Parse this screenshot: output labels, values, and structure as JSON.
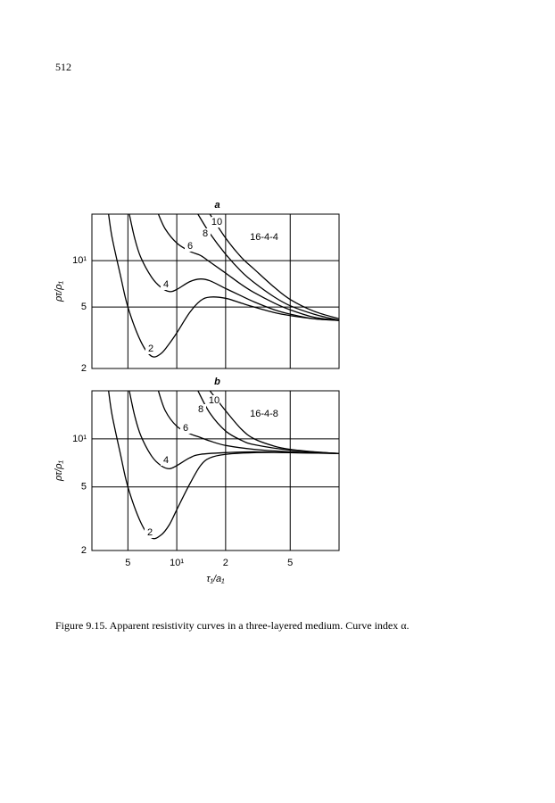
{
  "page_number": "512",
  "figure_caption": "Figure 9.15. Apparent resistivity curves in a three-layered medium. Curve index α.",
  "chart_data": [
    {
      "type": "line",
      "title": "a",
      "annotation": "16-4-4",
      "y_label": "ρτ/ρ₁",
      "log_x": true,
      "log_y": true,
      "grid": true,
      "xlim": [
        3,
        100
      ],
      "ylim": [
        2,
        20
      ],
      "xticks": [
        5,
        10,
        20,
        50
      ],
      "yticks": [
        2,
        5,
        {
          "value": 10,
          "label": "10¹"
        }
      ],
      "series": [
        {
          "name": "2",
          "color": "#000000",
          "x": [
            3.8,
            4,
            4.5,
            5,
            6,
            7,
            8,
            9,
            10,
            12,
            14,
            16,
            20,
            25,
            30,
            40,
            50,
            70,
            100
          ],
          "values": [
            20,
            14,
            8,
            5,
            3,
            2.4,
            2.5,
            2.9,
            3.4,
            4.6,
            5.5,
            5.8,
            5.7,
            5.3,
            5.0,
            4.6,
            4.4,
            4.2,
            4.1
          ]
        },
        {
          "name": "4",
          "color": "#000000",
          "x": [
            5.1,
            5.5,
            6,
            7,
            8,
            9,
            10,
            12,
            14,
            16,
            20,
            25,
            30,
            40,
            50,
            70,
            100
          ],
          "values": [
            20,
            14,
            10.5,
            7.8,
            6.7,
            6.3,
            6.5,
            7.3,
            7.6,
            7.4,
            6.6,
            5.9,
            5.4,
            4.8,
            4.5,
            4.2,
            4.1
          ]
        },
        {
          "name": "6",
          "color": "#000000",
          "x": [
            7.7,
            8.5,
            10,
            12,
            14,
            16,
            20,
            25,
            30,
            40,
            50,
            70,
            100
          ],
          "values": [
            20,
            16,
            13,
            11.5,
            10.8,
            9.8,
            8.3,
            7.0,
            6.2,
            5.3,
            4.8,
            4.3,
            4.1
          ]
        },
        {
          "name": "8",
          "color": "#000000",
          "x": [
            13.5,
            16,
            20,
            25,
            30,
            40,
            50,
            70,
            100
          ],
          "values": [
            20,
            15,
            11,
            8.5,
            7.2,
            5.8,
            5.1,
            4.5,
            4.1
          ]
        },
        {
          "name": "10",
          "color": "#000000",
          "x": [
            16,
            20,
            25,
            30,
            40,
            50,
            70,
            100
          ],
          "values": [
            20,
            14,
            10.5,
            8.8,
            6.7,
            5.6,
            4.7,
            4.2
          ]
        }
      ]
    },
    {
      "type": "line",
      "title": "b",
      "annotation": "16-4-8",
      "y_label": "ρτ/ρ₁",
      "x_label": "τ₁/a₁",
      "log_x": true,
      "log_y": true,
      "grid": true,
      "xlim": [
        3,
        100
      ],
      "ylim": [
        2,
        20
      ],
      "xticks": [
        5,
        {
          "value": 10,
          "label": "10¹"
        },
        {
          "value": 20,
          "label": "2"
        },
        {
          "value": 50,
          "label": "5"
        }
      ],
      "yticks": [
        2,
        5,
        {
          "value": 10,
          "label": "10¹"
        }
      ],
      "series": [
        {
          "name": "2",
          "color": "#000000",
          "x": [
            3.8,
            4,
            4.5,
            5,
            6,
            7,
            8,
            9,
            10,
            12,
            14,
            16,
            20,
            30,
            50,
            100
          ],
          "values": [
            20,
            14,
            8,
            5,
            3,
            2.4,
            2.5,
            2.9,
            3.6,
            5.2,
            6.8,
            7.6,
            8.0,
            8.2,
            8.2,
            8.1
          ]
        },
        {
          "name": "4",
          "color": "#000000",
          "x": [
            5.1,
            5.5,
            6,
            7,
            8,
            9,
            10,
            12,
            14,
            20,
            30,
            50,
            100
          ],
          "values": [
            20,
            14,
            10.5,
            7.8,
            6.8,
            6.5,
            6.8,
            7.6,
            8.0,
            8.2,
            8.3,
            8.2,
            8.1
          ]
        },
        {
          "name": "6",
          "color": "#000000",
          "x": [
            7.7,
            8.5,
            10,
            12,
            14,
            16,
            20,
            30,
            50,
            100
          ],
          "values": [
            20,
            15,
            12,
            10.8,
            10.2,
            9.7,
            9.1,
            8.6,
            8.3,
            8.1
          ]
        },
        {
          "name": "8",
          "color": "#000000",
          "x": [
            13.5,
            16,
            20,
            25,
            30,
            50,
            100
          ],
          "values": [
            20,
            14.5,
            11.2,
            9.8,
            9.2,
            8.5,
            8.1
          ]
        },
        {
          "name": "10",
          "color": "#000000",
          "x": [
            16,
            20,
            25,
            30,
            40,
            50,
            70,
            100
          ],
          "values": [
            20,
            15,
            11.5,
            10,
            9.0,
            8.6,
            8.3,
            8.1
          ]
        }
      ]
    }
  ]
}
